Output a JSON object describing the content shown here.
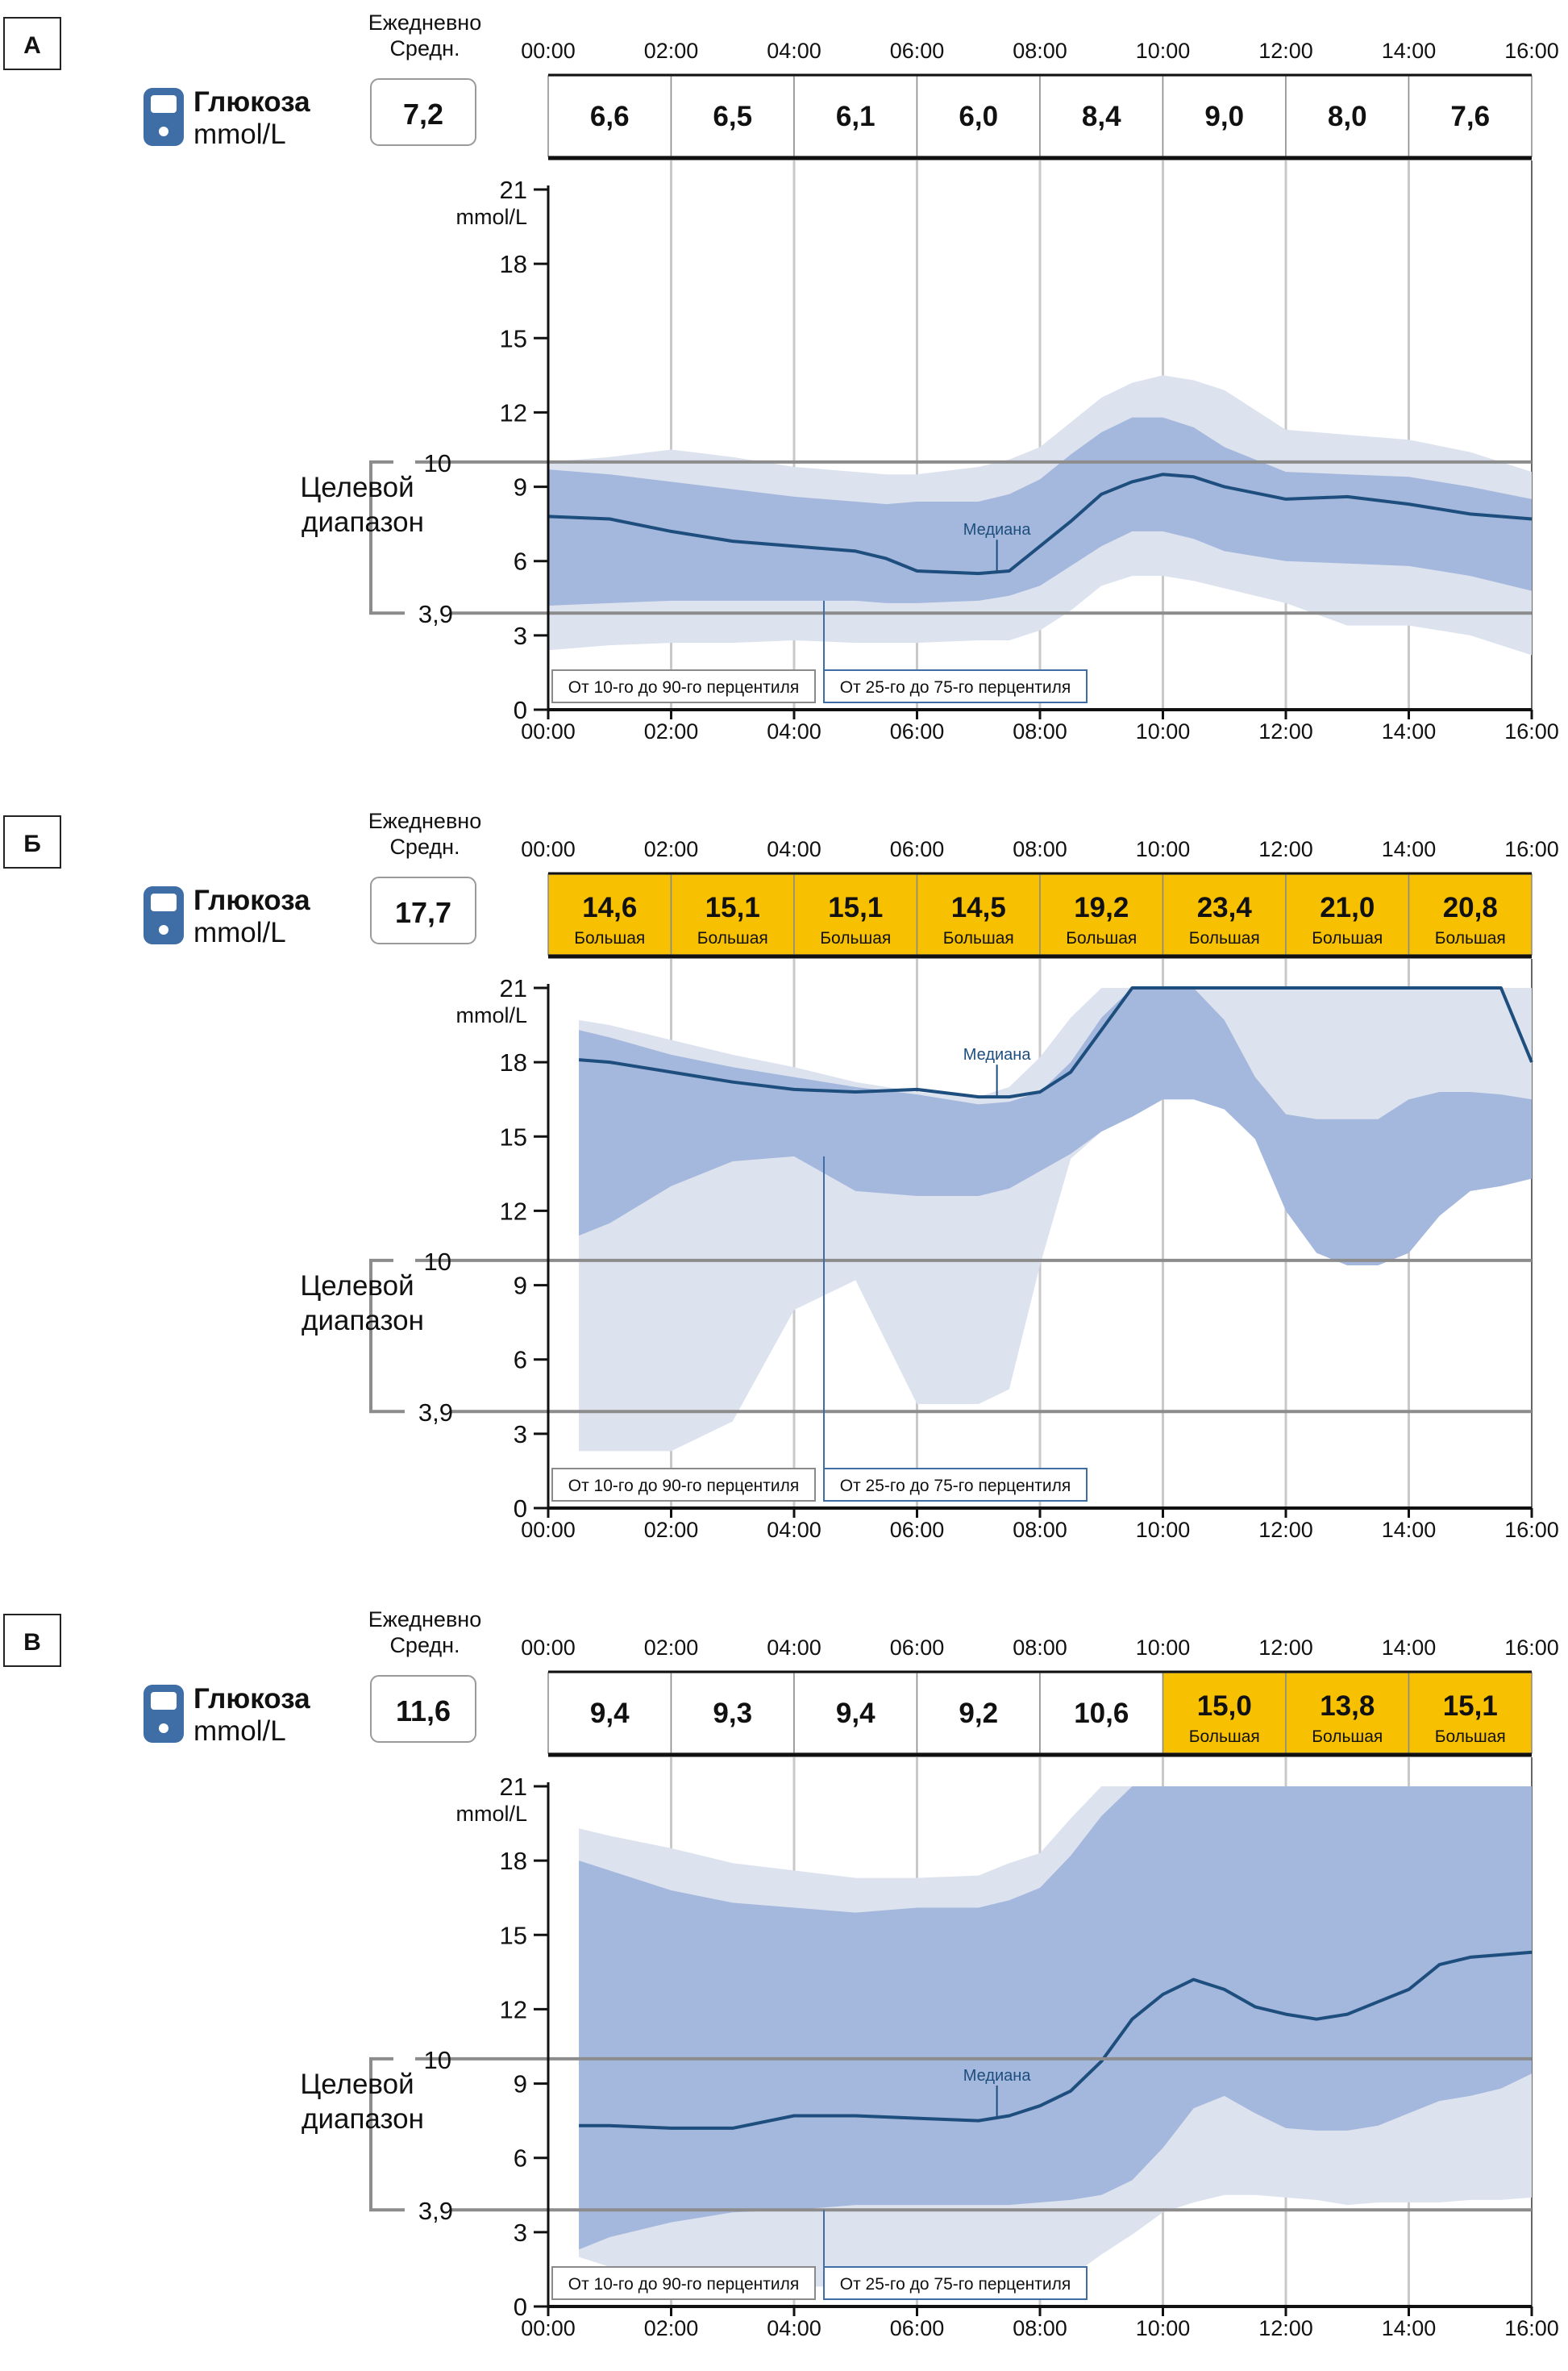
{
  "colors": {
    "band_outer": "#dde2ef",
    "band_inner": "#a4b7dc",
    "median": "#1d4e7d",
    "grid_vertical": "#c9c9c9",
    "target_line": "#8c8c8c",
    "high_fill": "#f7c000",
    "icon": "#3f6ea6",
    "legend_inner_border": "#3f6ea6",
    "text": "#111111"
  },
  "panels": [
    {
      "letter": "А",
      "daily_label_1": "Ежедневно",
      "daily_label_2": "Средн.",
      "daily_avg": "7,2",
      "glucose_title": "Глюкоза",
      "glucose_unit": "mmol/L",
      "target_label_1": "Целевой",
      "target_label_2": "диапазон",
      "target_high": "10",
      "target_low": "3,9",
      "unit_label": "mmol/L",
      "median_label": "Медиана",
      "legend_outer": "От 10-го до 90-го перцентиля",
      "legend_inner": "От 25-го до 75-го перцентиля",
      "period_values": [
        {
          "value": "6,6",
          "sublabel": "",
          "high": false
        },
        {
          "value": "6,5",
          "sublabel": "",
          "high": false
        },
        {
          "value": "6,1",
          "sublabel": "",
          "high": false
        },
        {
          "value": "6,0",
          "sublabel": "",
          "high": false
        },
        {
          "value": "8,4",
          "sublabel": "",
          "high": false
        },
        {
          "value": "9,0",
          "sublabel": "",
          "high": false
        },
        {
          "value": "8,0",
          "sublabel": "",
          "high": false
        },
        {
          "value": "7,6",
          "sublabel": "",
          "high": false
        }
      ],
      "chart_data": {
        "type": "area",
        "title": "Глюкоза",
        "xlabel": "",
        "ylabel": "mmol/L",
        "x_ticks": [
          "00:00",
          "02:00",
          "04:00",
          "06:00",
          "08:00",
          "10:00",
          "12:00",
          "14:00",
          "16:00"
        ],
        "y_ticks": [
          0,
          3,
          6,
          9,
          12,
          15,
          18,
          21
        ],
        "xlim": [
          0,
          16
        ],
        "ylim": [
          0,
          21
        ],
        "target_range": [
          3.9,
          10
        ],
        "x": [
          0,
          1,
          2,
          3,
          4,
          5,
          5.5,
          6,
          7,
          7.5,
          8,
          8.5,
          9,
          9.5,
          10,
          10.5,
          11,
          12,
          13,
          14,
          15,
          16
        ],
        "series": [
          {
            "name": "p90",
            "values": [
              10.0,
              10.2,
              10.5,
              10.2,
              9.8,
              9.6,
              9.5,
              9.5,
              9.8,
              10.1,
              10.6,
              11.6,
              12.6,
              13.2,
              13.5,
              13.3,
              12.9,
              11.3,
              11.1,
              10.9,
              10.4,
              9.6
            ]
          },
          {
            "name": "p75",
            "values": [
              9.7,
              9.5,
              9.2,
              8.9,
              8.6,
              8.4,
              8.3,
              8.4,
              8.4,
              8.7,
              9.3,
              10.3,
              11.2,
              11.8,
              11.8,
              11.4,
              10.6,
              9.6,
              9.5,
              9.4,
              9.0,
              8.5
            ]
          },
          {
            "name": "Медиана",
            "values": [
              7.8,
              7.7,
              7.2,
              6.8,
              6.6,
              6.4,
              6.1,
              5.6,
              5.5,
              5.6,
              6.6,
              7.6,
              8.7,
              9.2,
              9.5,
              9.4,
              9.0,
              8.5,
              8.6,
              8.3,
              7.9,
              7.7
            ]
          },
          {
            "name": "p25",
            "values": [
              4.2,
              4.3,
              4.4,
              4.4,
              4.4,
              4.4,
              4.3,
              4.3,
              4.4,
              4.6,
              5.0,
              5.8,
              6.6,
              7.2,
              7.2,
              6.9,
              6.4,
              6.0,
              5.9,
              5.8,
              5.4,
              4.8
            ]
          },
          {
            "name": "p10",
            "values": [
              2.4,
              2.6,
              2.7,
              2.7,
              2.8,
              2.7,
              2.7,
              2.7,
              2.8,
              2.8,
              3.2,
              4.0,
              5.0,
              5.4,
              5.4,
              5.2,
              4.9,
              4.3,
              3.4,
              3.4,
              3.0,
              2.2
            ]
          }
        ]
      }
    },
    {
      "letter": "Б",
      "daily_label_1": "Ежедневно",
      "daily_label_2": "Средн.",
      "daily_avg": "17,7",
      "glucose_title": "Глюкоза",
      "glucose_unit": "mmol/L",
      "target_label_1": "Целевой",
      "target_label_2": "диапазон",
      "target_high": "10",
      "target_low": "3,9",
      "unit_label": "mmol/L",
      "median_label": "Медиана",
      "legend_outer": "От 10-го до 90-го перцентиля",
      "legend_inner": "От 25-го до 75-го перцентиля",
      "period_values": [
        {
          "value": "14,6",
          "sublabel": "Большая",
          "high": true
        },
        {
          "value": "15,1",
          "sublabel": "Большая",
          "high": true
        },
        {
          "value": "15,1",
          "sublabel": "Большая",
          "high": true
        },
        {
          "value": "14,5",
          "sublabel": "Большая",
          "high": true
        },
        {
          "value": "19,2",
          "sublabel": "Большая",
          "high": true
        },
        {
          "value": "23,4",
          "sublabel": "Большая",
          "high": true
        },
        {
          "value": "21,0",
          "sublabel": "Большая",
          "high": true
        },
        {
          "value": "20,8",
          "sublabel": "Большая",
          "high": true
        }
      ],
      "chart_data": {
        "type": "area",
        "title": "Глюкоза",
        "xlabel": "",
        "ylabel": "mmol/L",
        "x_ticks": [
          "00:00",
          "02:00",
          "04:00",
          "06:00",
          "08:00",
          "10:00",
          "12:00",
          "14:00",
          "16:00"
        ],
        "y_ticks": [
          0,
          3,
          6,
          9,
          12,
          15,
          18,
          21
        ],
        "xlim": [
          0,
          16
        ],
        "ylim": [
          0,
          21
        ],
        "target_range": [
          3.9,
          10
        ],
        "x": [
          0.5,
          1,
          2,
          3,
          4,
          5,
          6,
          7,
          7.5,
          8,
          8.5,
          9,
          9.5,
          10,
          10.5,
          11,
          11.5,
          12,
          12.5,
          13,
          13.5,
          14,
          14.5,
          15,
          15.5,
          16
        ],
        "series": [
          {
            "name": "p90",
            "values": [
              19.7,
              19.5,
              18.9,
              18.3,
              17.8,
              17.2,
              16.8,
              16.6,
              17.0,
              18.2,
              19.8,
              21.0,
              21.0,
              21.0,
              21.0,
              21.0,
              21.0,
              21.0,
              21.0,
              21.0,
              21.0,
              21.0,
              21.0,
              21.0,
              21.0,
              21.0
            ]
          },
          {
            "name": "p75",
            "values": [
              19.3,
              19.0,
              18.3,
              17.8,
              17.4,
              17.0,
              16.7,
              16.3,
              16.4,
              16.8,
              18.0,
              19.8,
              21.0,
              21.0,
              21.0,
              19.7,
              17.4,
              15.9,
              15.7,
              15.7,
              15.7,
              16.5,
              16.8,
              16.8,
              16.7,
              16.5
            ]
          },
          {
            "name": "Медиана",
            "values": [
              18.1,
              18.0,
              17.6,
              17.2,
              16.9,
              16.8,
              16.9,
              16.6,
              16.6,
              16.8,
              17.6,
              19.3,
              21.0,
              21.0,
              21.0,
              21.0,
              21.0,
              21.0,
              21.0,
              21.0,
              21.0,
              21.0,
              21.0,
              21.0,
              21.0,
              18.0
            ]
          },
          {
            "name": "p25",
            "values": [
              11.0,
              11.5,
              13.0,
              14.0,
              14.2,
              12.8,
              12.6,
              12.6,
              12.9,
              13.6,
              14.3,
              15.2,
              15.8,
              16.5,
              16.5,
              16.1,
              14.9,
              12.0,
              10.3,
              9.8,
              9.8,
              10.3,
              11.8,
              12.8,
              13.0,
              13.3
            ]
          },
          {
            "name": "p10",
            "values": [
              2.3,
              2.3,
              2.3,
              3.5,
              8.0,
              9.2,
              4.2,
              4.2,
              4.8,
              9.8,
              14.1,
              15.2,
              15.8,
              16.5,
              16.5,
              16.1,
              14.9,
              12.0,
              10.3,
              9.8,
              9.8,
              10.3,
              11.8,
              12.8,
              13.0,
              13.3
            ]
          }
        ]
      }
    },
    {
      "letter": "В",
      "daily_label_1": "Ежедневно",
      "daily_label_2": "Средн.",
      "daily_avg": "11,6",
      "glucose_title": "Глюкоза",
      "glucose_unit": "mmol/L",
      "target_label_1": "Целевой",
      "target_label_2": "диапазон",
      "target_high": "10",
      "target_low": "3,9",
      "unit_label": "mmol/L",
      "median_label": "Медиана",
      "legend_outer": "От 10-го до 90-го перцентиля",
      "legend_inner": "От 25-го до 75-го перцентиля",
      "period_values": [
        {
          "value": "9,4",
          "sublabel": "",
          "high": false
        },
        {
          "value": "9,3",
          "sublabel": "",
          "high": false
        },
        {
          "value": "9,4",
          "sublabel": "",
          "high": false
        },
        {
          "value": "9,2",
          "sublabel": "",
          "high": false
        },
        {
          "value": "10,6",
          "sublabel": "",
          "high": false
        },
        {
          "value": "15,0",
          "sublabel": "Большая",
          "high": true
        },
        {
          "value": "13,8",
          "sublabel": "Большая",
          "high": true
        },
        {
          "value": "15,1",
          "sublabel": "Большая",
          "high": true
        }
      ],
      "chart_data": {
        "type": "area",
        "title": "Глюкоза",
        "xlabel": "",
        "ylabel": "mmol/L",
        "x_ticks": [
          "00:00",
          "02:00",
          "04:00",
          "06:00",
          "08:00",
          "10:00",
          "12:00",
          "14:00",
          "16:00"
        ],
        "y_ticks": [
          0,
          3,
          6,
          9,
          12,
          15,
          18,
          21
        ],
        "xlim": [
          0,
          16
        ],
        "ylim": [
          0,
          21
        ],
        "target_range": [
          3.9,
          10
        ],
        "x": [
          0.5,
          1,
          2,
          3,
          4,
          5,
          6,
          7,
          7.5,
          8,
          8.5,
          9,
          9.5,
          10,
          10.5,
          11,
          11.5,
          12,
          12.5,
          13,
          13.5,
          14,
          14.5,
          15,
          15.5,
          16
        ],
        "series": [
          {
            "name": "p90",
            "values": [
              19.3,
              19.0,
              18.5,
              17.9,
              17.6,
              17.3,
              17.3,
              17.4,
              17.9,
              18.3,
              19.7,
              21.0,
              21.0,
              21.0,
              21.0,
              21.0,
              21.0,
              21.0,
              21.0,
              21.0,
              21.0,
              21.0,
              21.0,
              21.0,
              21.0,
              18.3
            ]
          },
          {
            "name": "p75",
            "values": [
              18.0,
              17.6,
              16.8,
              16.3,
              16.1,
              15.9,
              16.1,
              16.1,
              16.4,
              16.9,
              18.2,
              19.8,
              21.0,
              21.0,
              21.0,
              21.0,
              21.0,
              21.0,
              21.0,
              21.0,
              21.0,
              21.0,
              21.0,
              21.0,
              21.0,
              21.0
            ]
          },
          {
            "name": "Медиана",
            "values": [
              7.3,
              7.3,
              7.2,
              7.2,
              7.7,
              7.7,
              7.6,
              7.5,
              7.7,
              8.1,
              8.7,
              9.9,
              11.6,
              12.6,
              13.2,
              12.8,
              12.1,
              11.8,
              11.6,
              11.8,
              12.3,
              12.8,
              13.8,
              14.1,
              14.2,
              14.3
            ]
          },
          {
            "name": "p25",
            "values": [
              2.3,
              2.8,
              3.4,
              3.8,
              3.9,
              4.1,
              4.1,
              4.1,
              4.1,
              4.2,
              4.3,
              4.5,
              5.1,
              6.4,
              8.0,
              8.5,
              7.8,
              7.2,
              7.1,
              7.1,
              7.3,
              7.8,
              8.3,
              8.5,
              8.8,
              9.4
            ]
          },
          {
            "name": "p10",
            "values": [
              2.0,
              1.6,
              0.9,
              0.8,
              0.8,
              0.8,
              0.8,
              0.8,
              0.8,
              0.8,
              1.2,
              2.1,
              2.9,
              3.8,
              4.2,
              4.5,
              4.5,
              4.4,
              4.3,
              4.1,
              4.2,
              4.2,
              4.2,
              4.3,
              4.3,
              4.4
            ]
          }
        ]
      }
    }
  ]
}
